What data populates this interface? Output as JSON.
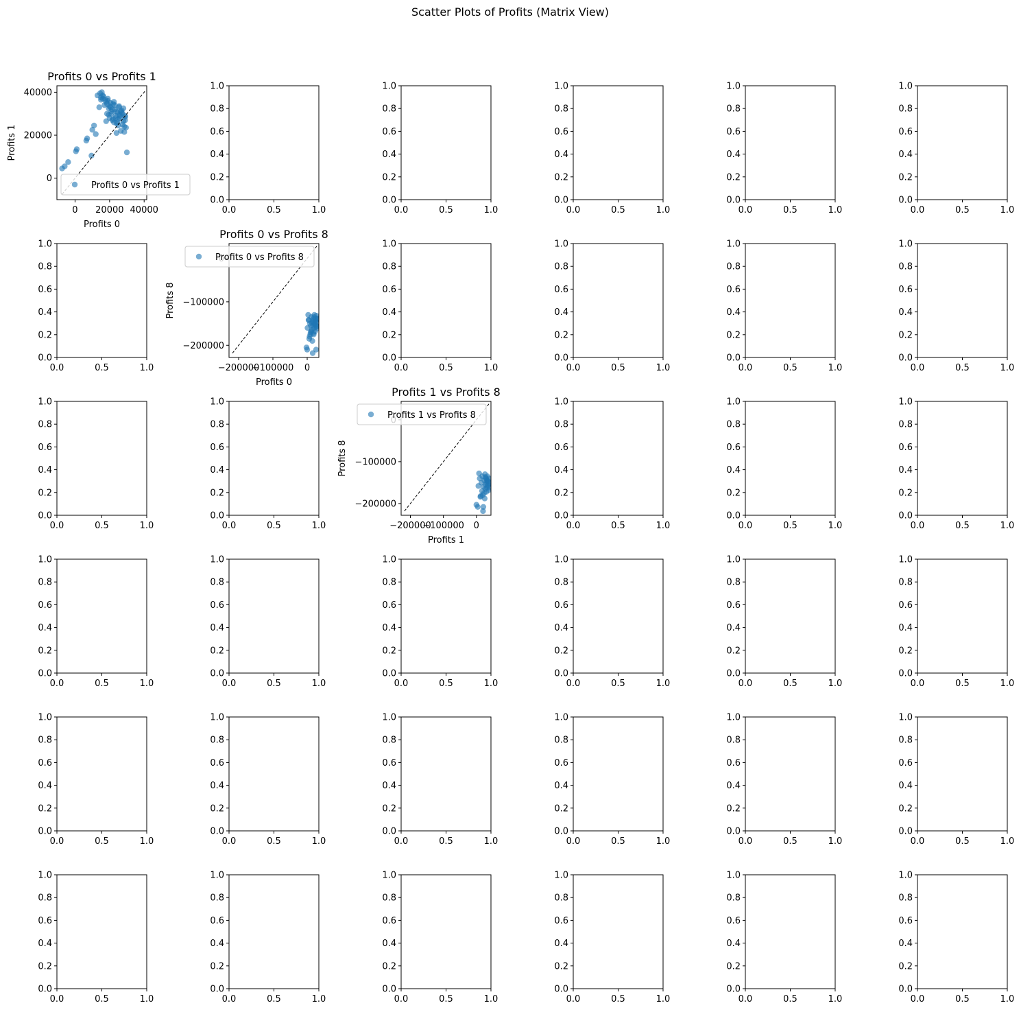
{
  "figure": {
    "title": "Scatter Plots of Profits (Matrix View)"
  },
  "colors": {
    "point": "#1f77b4",
    "diagonal": "#000000",
    "axes": "#000000",
    "background": "#ffffff"
  },
  "chart_data": [
    {
      "type": "scatter",
      "title": "Profits 0 vs Profits 1",
      "xlabel": "Profits 0",
      "ylabel": "Profits 1",
      "xlim": [
        -10500,
        41500
      ],
      "ylim": [
        -10000,
        43000
      ],
      "xticks": [
        0,
        20000,
        40000
      ],
      "xtick_labels": [
        "0",
        "20000",
        "40000"
      ],
      "yticks": [
        0,
        20000,
        40000
      ],
      "ytick_labels": [
        "0",
        "20000",
        "40000"
      ],
      "legend": {
        "label": "Profits 0 vs Profits 1",
        "position": "lower-right"
      },
      "reference_line": [
        [
          -7500,
          -7500
        ],
        [
          40500,
          40500
        ]
      ],
      "series": [
        {
          "name": "Profits 0 vs Profits 1",
          "x": [
            -7500,
            -6000,
            -4000,
            500,
            1000,
            6500,
            7000,
            9500,
            10000,
            11000,
            12000,
            13000,
            14000,
            15000,
            15500,
            16000,
            17000,
            18000,
            18500,
            19000,
            19500,
            20000,
            20500,
            21000,
            21500,
            22000,
            22500,
            23000,
            23500,
            24000,
            24500,
            25000,
            25500,
            26000,
            26500,
            27000,
            27500,
            28000,
            28500,
            29000,
            29500,
            30000,
            14500,
            16500,
            18000,
            19500,
            21000,
            22000,
            23000,
            24000,
            25000,
            26000,
            27000,
            28000,
            29000,
            17500,
            19000,
            20500,
            22500,
            24500,
            26500,
            28500,
            15000,
            21500,
            23500,
            25500,
            27500,
            29000,
            16000,
            18500,
            20000,
            24000,
            26000
          ],
          "y": [
            4500,
            5500,
            7500,
            12500,
            13500,
            17500,
            18500,
            10500,
            22500,
            24500,
            20500,
            38500,
            33000,
            36500,
            40000,
            37000,
            34000,
            26500,
            30000,
            36000,
            29500,
            33500,
            35000,
            31000,
            27000,
            34500,
            26000,
            32000,
            28000,
            21000,
            30500,
            24500,
            33000,
            29000,
            22000,
            31500,
            25000,
            32500,
            21500,
            28500,
            23500,
            12000,
            39500,
            38000,
            35500,
            32500,
            30000,
            27500,
            34000,
            31000,
            27500,
            29500,
            30500,
            26500,
            29000,
            36500,
            37000,
            33000,
            35500,
            26000,
            31000,
            24000,
            37500,
            32000,
            29000,
            33500,
            30000,
            27000,
            38500,
            34500,
            28000,
            25500,
            28000
          ]
        }
      ]
    },
    {
      "type": "scatter",
      "title": "Profits 0 vs Profits 8",
      "xlabel": "Profits 0",
      "ylabel": "Profits 8",
      "xlim": [
        -228000,
        34000
      ],
      "ylim": [
        -228000,
        34000
      ],
      "xticks": [
        -200000,
        -100000,
        0
      ],
      "xtick_labels": [
        "−200000",
        "−100000",
        "0"
      ],
      "yticks": [
        -200000,
        -100000,
        0
      ],
      "ytick_labels": [
        "−200000",
        "−100000",
        "0"
      ],
      "legend": {
        "label": "Profits 0 vs Profits 8",
        "position": "upper-right"
      },
      "reference_line": [
        [
          -218000,
          -218000
        ],
        [
          28000,
          28000
        ]
      ],
      "series": [
        {
          "name": "Profits 0 vs Profits 8",
          "x": [
            -2000,
            0,
            1000,
            3000,
            5000,
            7000,
            8000,
            10000,
            12000,
            13000,
            15000,
            16000,
            17000,
            18000,
            19000,
            20000,
            21000,
            22000,
            23000,
            24000,
            25000,
            26000,
            27000,
            28000,
            29000,
            30000,
            6000,
            9000,
            11000,
            14000,
            16000,
            18000,
            20000,
            22000,
            24000,
            26000,
            28000,
            30000,
            4000,
            12000,
            19000,
            25000
          ],
          "y": [
            -205000,
            -210000,
            -160000,
            -130000,
            -142000,
            -180000,
            -150000,
            -170000,
            -135000,
            -165000,
            -190000,
            -145000,
            -155000,
            -140000,
            -175000,
            -160000,
            -130000,
            -150000,
            -168000,
            -138000,
            -145000,
            -158000,
            -132000,
            -162000,
            -148000,
            -140000,
            -185000,
            -175000,
            -155000,
            -148000,
            -218000,
            -172000,
            -135000,
            -152000,
            -143000,
            -210000,
            -156000,
            -138000,
            -142000,
            -168000,
            -147000,
            -153000
          ]
        }
      ]
    },
    {
      "type": "scatter",
      "title": "Profits 1 vs Profits 8",
      "xlabel": "Profits 1",
      "ylabel": "Profits 8",
      "xlim": [
        -228000,
        44000
      ],
      "ylim": [
        -228000,
        44000
      ],
      "xticks": [
        -200000,
        -100000,
        0
      ],
      "xtick_labels": [
        "−200000",
        "−100000",
        "0"
      ],
      "yticks": [
        -200000,
        -100000,
        0
      ],
      "ytick_labels": [
        "−200000",
        "−100000",
        "0"
      ],
      "legend": {
        "label": "Profits 1 vs Profits 8",
        "position": "upper-right"
      },
      "reference_line": [
        [
          -218000,
          -218000
        ],
        [
          40000,
          40000
        ]
      ],
      "series": [
        {
          "name": "Profits 1 vs Profits 8",
          "x": [
            0,
            4000,
            6000,
            8000,
            10000,
            13000,
            15000,
            17000,
            18000,
            20000,
            22000,
            24000,
            25000,
            26000,
            27000,
            28000,
            29000,
            30000,
            31000,
            32000,
            33000,
            34000,
            35000,
            36000,
            37000,
            38000,
            39000,
            40000,
            12000,
            21000,
            23000,
            27000,
            31000,
            35000,
            19000,
            33000
          ],
          "y": [
            -203000,
            -208000,
            -158000,
            -128000,
            -140000,
            -182000,
            -150000,
            -170000,
            -135000,
            -218000,
            -160000,
            -145000,
            -188000,
            -130000,
            -165000,
            -155000,
            -140000,
            -172000,
            -150000,
            -162000,
            -135000,
            -145000,
            -158000,
            -148000,
            -168000,
            -140000,
            -152000,
            -162000,
            -184000,
            -208000,
            -175000,
            -137000,
            -143000,
            -155000,
            -180000,
            -147000
          ]
        }
      ]
    }
  ],
  "empty_axes": {
    "xticks": [
      0,
      0.5,
      1
    ],
    "xtick_labels": [
      "0.0",
      "0.5",
      "1.0"
    ],
    "yticks": [
      0,
      0.2,
      0.4,
      0.6,
      0.8,
      1
    ],
    "ytick_labels": [
      "0.0",
      "0.2",
      "0.4",
      "0.6",
      "0.8",
      "1.0"
    ]
  }
}
